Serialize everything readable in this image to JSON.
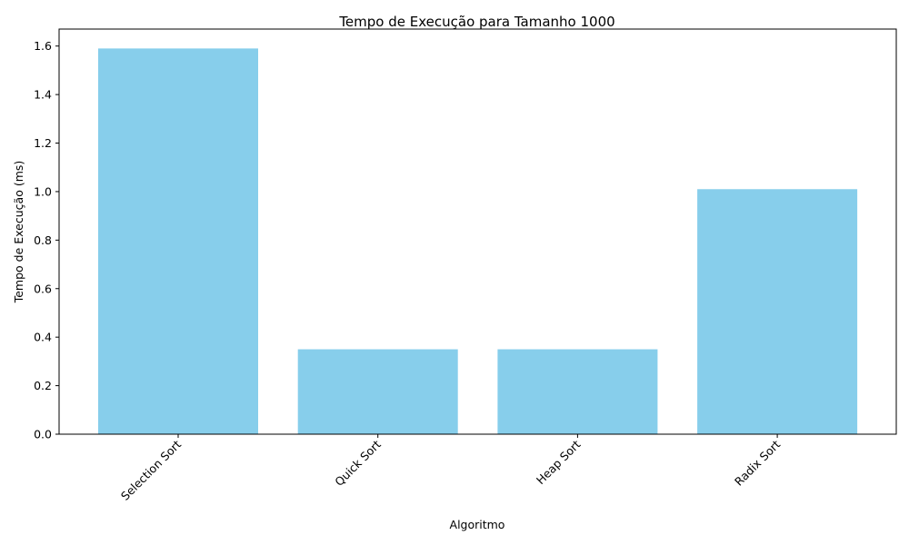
{
  "chart_data": {
    "type": "bar",
    "title": "Tempo de Execução para Tamanho 1000",
    "xlabel": "Algoritmo",
    "ylabel": "Tempo de Execução (ms)",
    "categories": [
      "Selection Sort",
      "Quick Sort",
      "Heap Sort",
      "Radix Sort"
    ],
    "values": [
      1.59,
      0.35,
      0.35,
      1.01
    ],
    "ylim": [
      0,
      1.67
    ],
    "yticks": [
      "0.0",
      "0.2",
      "0.4",
      "0.6",
      "0.8",
      "1.0",
      "1.2",
      "1.4",
      "1.6"
    ],
    "x_tick_rotation": 45,
    "grid": false,
    "legend": "none",
    "bar_color": "#87ceeb"
  }
}
